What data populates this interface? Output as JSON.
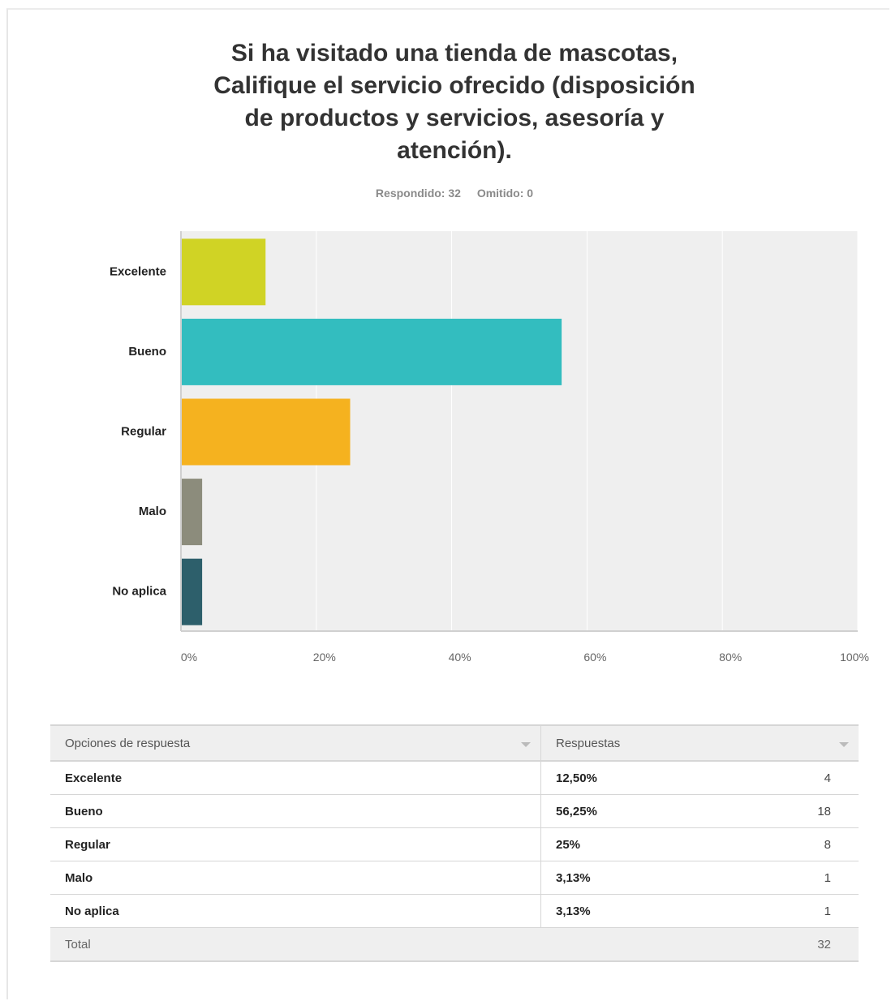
{
  "chart_data": {
    "type": "bar",
    "orientation": "horizontal",
    "title": "Si ha visitado una tienda de mascotas, Califique el servicio ofrecido (disposición de productos y servicios, asesoría y atención).",
    "categories": [
      "Excelente",
      "Bueno",
      "Regular",
      "Malo",
      "No aplica"
    ],
    "values": [
      12.5,
      56.25,
      25,
      3.13,
      3.13
    ],
    "colors": [
      "#d0d325",
      "#33bdbf",
      "#f5b21f",
      "#8c8c7c",
      "#2d5f6b"
    ],
    "xlim": [
      0,
      100
    ],
    "xticks": [
      "0%",
      "20%",
      "40%",
      "60%",
      "80%",
      "100%"
    ],
    "grid": true
  },
  "title_lines": [
    "Si ha visitado una tienda de mascotas,",
    "Califique el servicio ofrecido (disposición",
    "de productos y servicios, asesoría y",
    "atención)."
  ],
  "meta": {
    "answered": "Respondido: 32",
    "skipped": "Omitido: 0"
  },
  "table": {
    "headers": [
      "Opciones de respuesta",
      "Respuestas"
    ],
    "rows": [
      {
        "option": "Excelente",
        "percent": "12,50%",
        "count": "4"
      },
      {
        "option": "Bueno",
        "percent": "56,25%",
        "count": "18"
      },
      {
        "option": "Regular",
        "percent": "25%",
        "count": "8"
      },
      {
        "option": "Malo",
        "percent": "3,13%",
        "count": "1"
      },
      {
        "option": "No aplica",
        "percent": "3,13%",
        "count": "1"
      }
    ],
    "total_label": "Total",
    "total_value": "32"
  }
}
